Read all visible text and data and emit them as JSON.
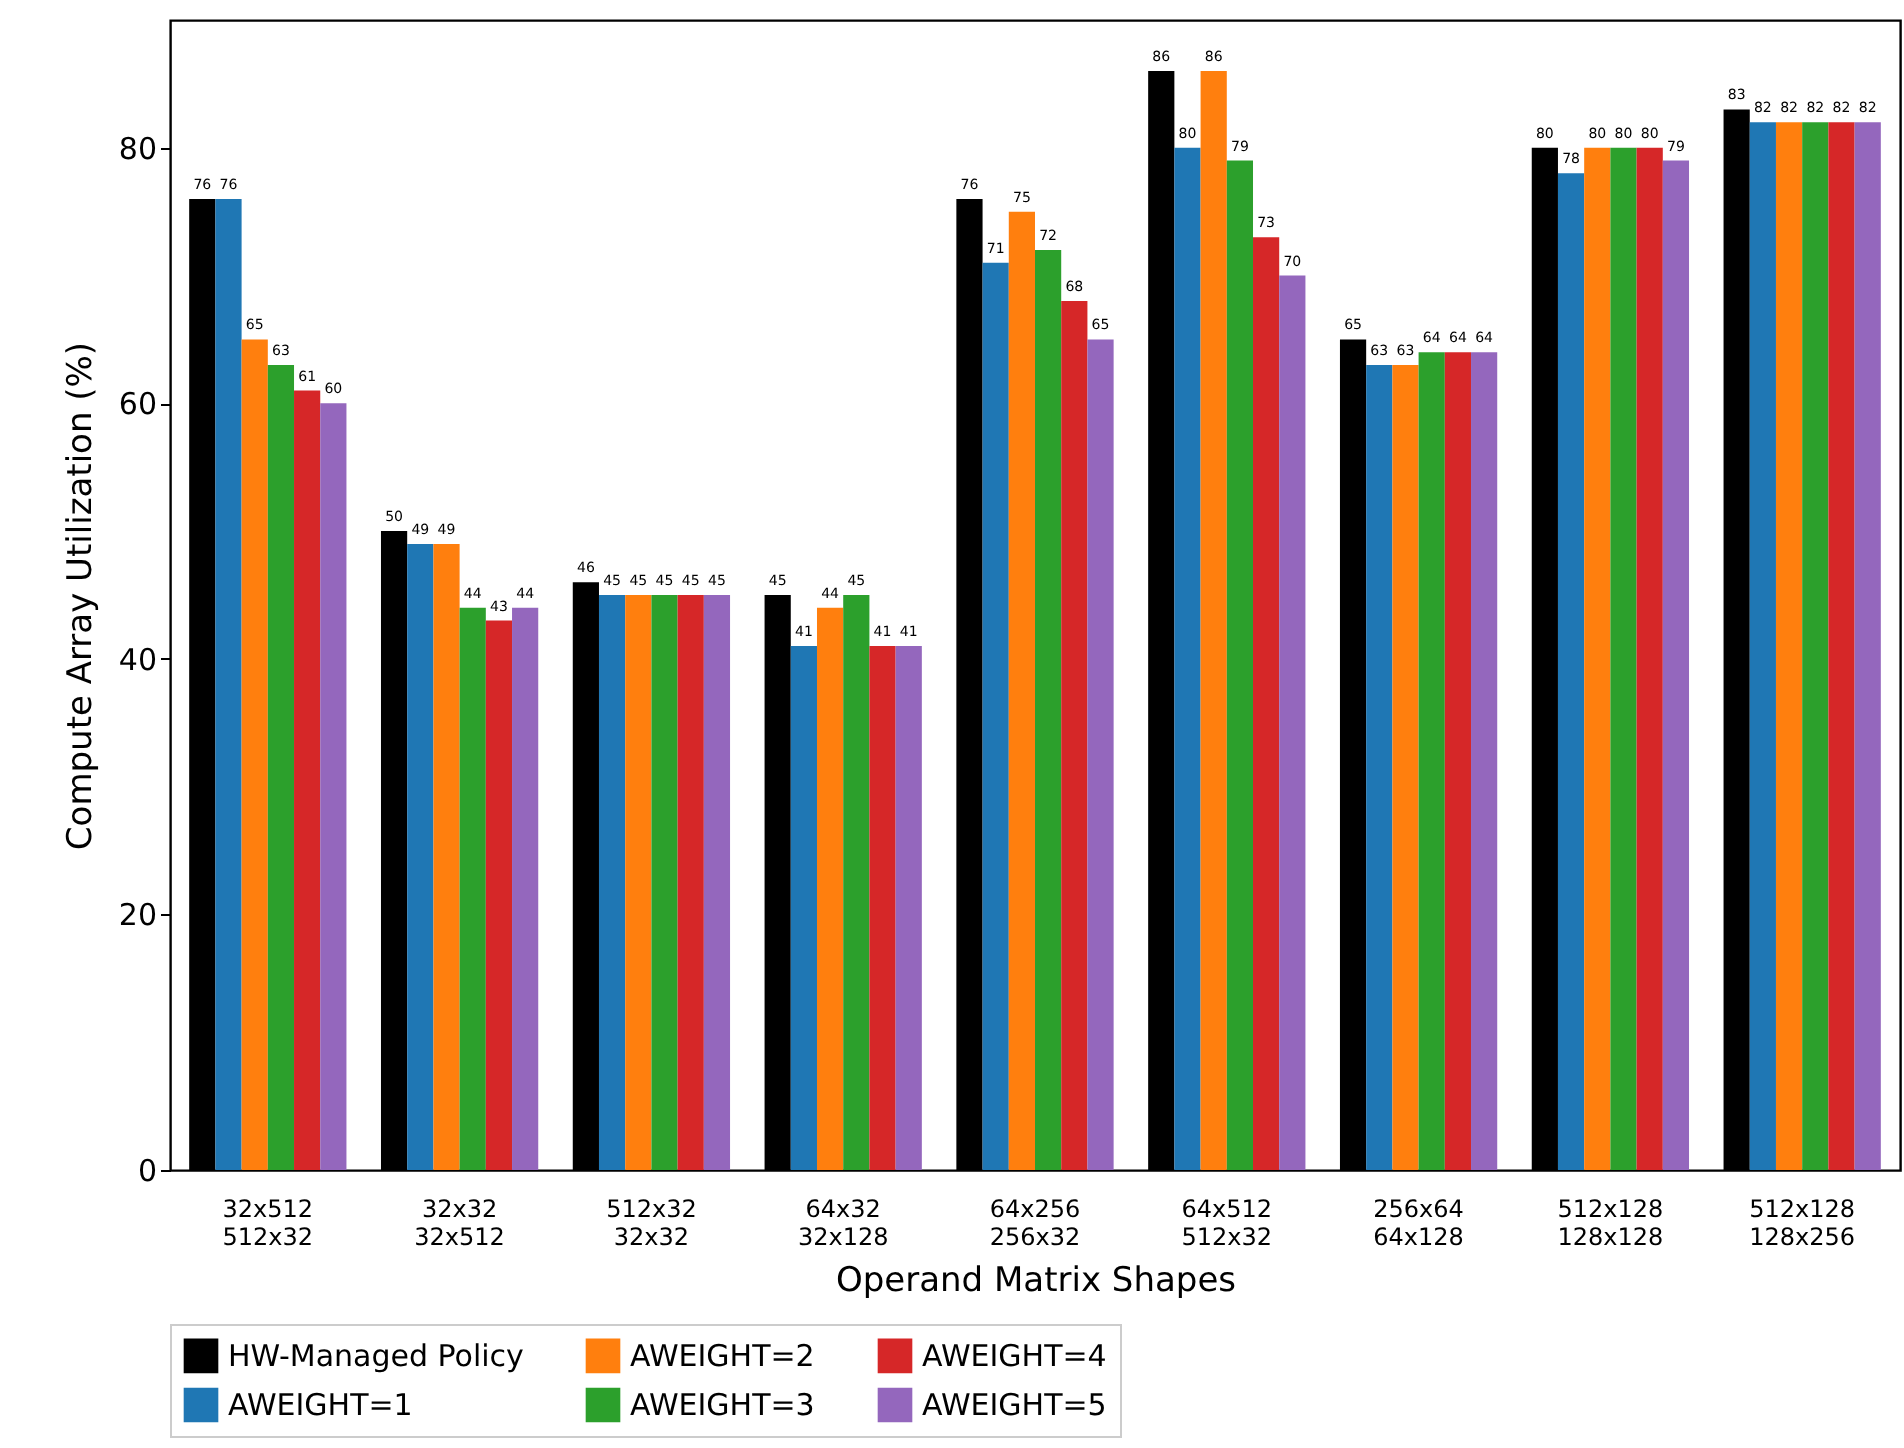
{
  "chart_data": {
    "type": "bar",
    "xlabel": "Operand Matrix Shapes",
    "ylabel": "Compute Array Utilization (%)",
    "categories": [
      "32x512\n512x32",
      "32x32\n32x512",
      "512x32\n32x32",
      "64x32\n32x128",
      "64x256\n256x32",
      "64x512\n512x32",
      "256x64\n64x128",
      "512x128\n128x128",
      "512x128\n128x256"
    ],
    "series": [
      {
        "name": "HW-Managed Policy",
        "color": "#000000",
        "values": [
          76,
          50,
          46,
          45,
          76,
          86,
          65,
          80,
          83
        ]
      },
      {
        "name": "AWEIGHT=1",
        "color": "#1f77b4",
        "values": [
          76,
          49,
          45,
          41,
          71,
          80,
          63,
          78,
          82
        ]
      },
      {
        "name": "AWEIGHT=2",
        "color": "#ff7f0e",
        "values": [
          65,
          49,
          45,
          44,
          75,
          86,
          63,
          80,
          82
        ]
      },
      {
        "name": "AWEIGHT=3",
        "color": "#2ca02c",
        "values": [
          63,
          44,
          45,
          45,
          72,
          79,
          64,
          80,
          82
        ]
      },
      {
        "name": "AWEIGHT=4",
        "color": "#d62728",
        "values": [
          61,
          43,
          45,
          41,
          68,
          73,
          64,
          80,
          82
        ]
      },
      {
        "name": "AWEIGHT=5",
        "color": "#9467bd",
        "values": [
          60,
          44,
          45,
          41,
          65,
          70,
          64,
          79,
          82
        ]
      }
    ],
    "ylim": [
      0,
      90
    ],
    "yticks": [
      0,
      20,
      40,
      60,
      80
    ],
    "grid": false,
    "legend": "bottom",
    "data_labels": true
  }
}
